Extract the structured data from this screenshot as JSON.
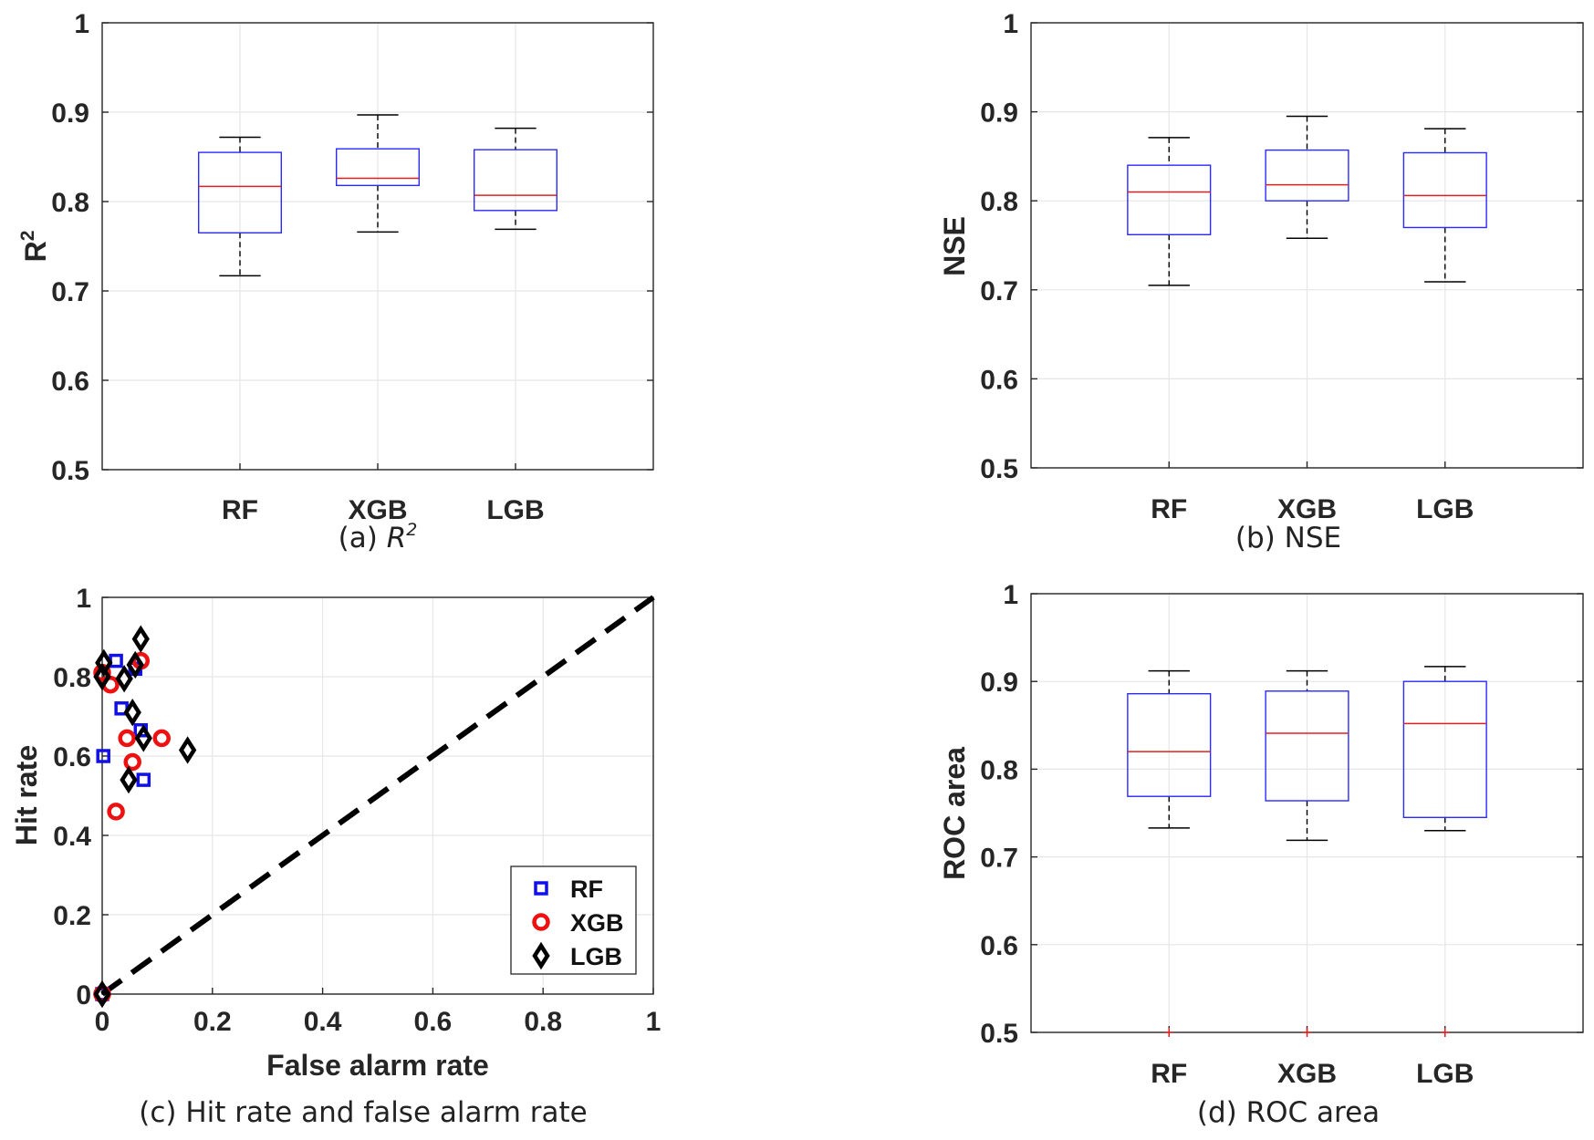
{
  "colors": {
    "box_edge": "#2a2aff",
    "median": "#e02020",
    "whisker": "#000000",
    "grid": "#e6e6e6",
    "rf": "#1010ee",
    "xgb": "#ee1111",
    "lgb": "#000000"
  },
  "chart_data": [
    {
      "id": "a",
      "type": "box",
      "ylabel": "R",
      "ylabel_sup": "2",
      "caption_prefix": "(a) ",
      "caption_var": "R",
      "caption_sup": "2",
      "ylim": [
        0.5,
        1
      ],
      "yticks": [
        "0.5",
        "0.6",
        "0.7",
        "0.8",
        "0.9",
        "1"
      ],
      "categories": [
        "RF",
        "XGB",
        "LGB"
      ],
      "boxes": [
        {
          "name": "RF",
          "q1": 0.765,
          "median": 0.817,
          "q3": 0.855,
          "whisker_low": 0.717,
          "whisker_high": 0.872,
          "outliers": []
        },
        {
          "name": "XGB",
          "q1": 0.818,
          "median": 0.826,
          "q3": 0.859,
          "whisker_low": 0.766,
          "whisker_high": 0.897,
          "outliers": []
        },
        {
          "name": "LGB",
          "q1": 0.79,
          "median": 0.807,
          "q3": 0.858,
          "whisker_low": 0.769,
          "whisker_high": 0.882,
          "outliers": []
        }
      ]
    },
    {
      "id": "b",
      "type": "box",
      "ylabel": "NSE",
      "caption_prefix": "(b) NSE",
      "ylim": [
        0.5,
        1
      ],
      "yticks": [
        "0.5",
        "0.6",
        "0.7",
        "0.8",
        "0.9",
        "1"
      ],
      "categories": [
        "RF",
        "XGB",
        "LGB"
      ],
      "boxes": [
        {
          "name": "RF",
          "q1": 0.762,
          "median": 0.81,
          "q3": 0.84,
          "whisker_low": 0.705,
          "whisker_high": 0.871,
          "outliers": []
        },
        {
          "name": "XGB",
          "q1": 0.8,
          "median": 0.818,
          "q3": 0.857,
          "whisker_low": 0.758,
          "whisker_high": 0.895,
          "outliers": []
        },
        {
          "name": "LGB",
          "q1": 0.77,
          "median": 0.806,
          "q3": 0.854,
          "whisker_low": 0.709,
          "whisker_high": 0.881,
          "outliers": []
        }
      ]
    },
    {
      "id": "c",
      "type": "scatter",
      "xlabel": "False alarm rate",
      "ylabel": "Hit rate",
      "caption_prefix": "(c) Hit rate and false alarm rate",
      "xlim": [
        0,
        1
      ],
      "ylim": [
        0,
        1
      ],
      "xticks": [
        "0",
        "0.2",
        "0.4",
        "0.6",
        "0.8",
        "1"
      ],
      "yticks": [
        "0",
        "0.2",
        "0.4",
        "0.6",
        "0.8",
        "1"
      ],
      "diagonal": [
        [
          0,
          0
        ],
        [
          1,
          1
        ]
      ],
      "legend_position": "bottom-right",
      "series": [
        {
          "name": "RF",
          "marker": "square",
          "points": [
            [
              0,
              0
            ],
            [
              0.002,
              0.6
            ],
            [
              0.025,
              0.84
            ],
            [
              0.035,
              0.72
            ],
            [
              0.06,
              0.82
            ],
            [
              0.07,
              0.665
            ],
            [
              0.075,
              0.54
            ]
          ]
        },
        {
          "name": "XGB",
          "marker": "circle",
          "points": [
            [
              0,
              0
            ],
            [
              0,
              0.81
            ],
            [
              0.015,
              0.78
            ],
            [
              0.025,
              0.46
            ],
            [
              0.045,
              0.645
            ],
            [
              0.055,
              0.585
            ],
            [
              0.07,
              0.84
            ],
            [
              0.108,
              0.645
            ]
          ]
        },
        {
          "name": "LGB",
          "marker": "diamond",
          "points": [
            [
              0,
              0
            ],
            [
              0,
              0.8
            ],
            [
              0.003,
              0.835
            ],
            [
              0.04,
              0.795
            ],
            [
              0.048,
              0.54
            ],
            [
              0.055,
              0.71
            ],
            [
              0.06,
              0.83
            ],
            [
              0.07,
              0.895
            ],
            [
              0.075,
              0.645
            ],
            [
              0.155,
              0.615
            ]
          ]
        }
      ]
    },
    {
      "id": "d",
      "type": "box",
      "ylabel": "ROC area",
      "caption_prefix": "(d) ROC area",
      "ylim": [
        0.5,
        1
      ],
      "yticks": [
        "0.5",
        "0.6",
        "0.7",
        "0.8",
        "0.9",
        "1"
      ],
      "categories": [
        "RF",
        "XGB",
        "LGB"
      ],
      "boxes": [
        {
          "name": "RF",
          "q1": 0.769,
          "median": 0.82,
          "q3": 0.886,
          "whisker_low": 0.733,
          "whisker_high": 0.912,
          "outliers": [
            0.5
          ]
        },
        {
          "name": "XGB",
          "q1": 0.764,
          "median": 0.841,
          "q3": 0.889,
          "whisker_low": 0.719,
          "whisker_high": 0.912,
          "outliers": [
            0.5
          ]
        },
        {
          "name": "LGB",
          "q1": 0.745,
          "median": 0.852,
          "q3": 0.9,
          "whisker_low": 0.73,
          "whisker_high": 0.917,
          "outliers": [
            0.5
          ]
        }
      ]
    }
  ]
}
